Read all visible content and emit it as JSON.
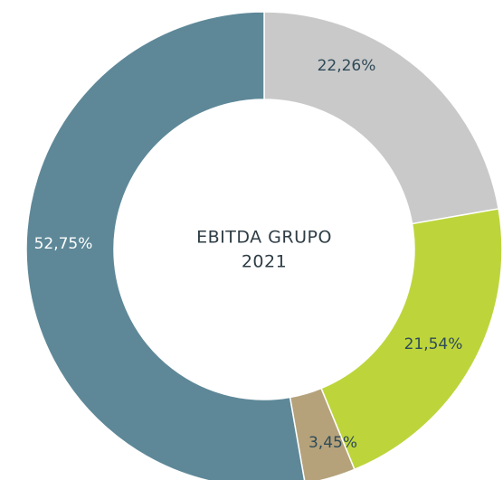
{
  "chart_data": {
    "type": "donut",
    "title_lines": [
      "EBITDA GRUPO",
      "2021"
    ],
    "categories": [
      null,
      null,
      null,
      null
    ],
    "values": [
      22.26,
      21.54,
      3.45,
      52.75
    ],
    "value_labels": [
      "22,26%",
      "21,54%",
      "3,45%",
      "52,75%"
    ],
    "colors": [
      "#c9c9c9",
      "#bdd53b",
      "#b5a27b",
      "#5e8898"
    ]
  }
}
